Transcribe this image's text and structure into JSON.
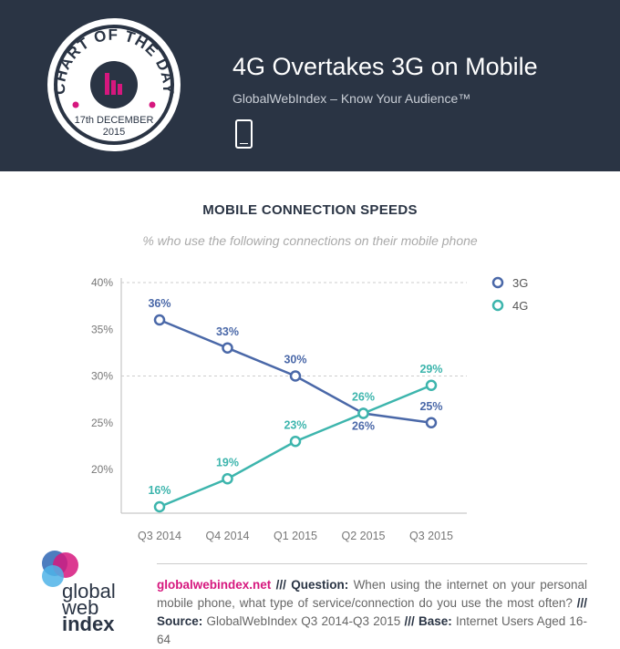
{
  "header": {
    "badge_title": "CHART OF THE DAY",
    "badge_date": "17th DECEMBER",
    "badge_year": "2015",
    "title": "4G Overtakes 3G on Mobile",
    "subtitle": "GlobalWebIndex – Know Your Audience™",
    "icon": "mobile-phone-icon",
    "bg": "#2a3444"
  },
  "chart_data": {
    "type": "line",
    "title": "MOBILE CONNECTION SPEEDS",
    "subtitle": "% who use the following connections on their mobile phone",
    "categories": [
      "Q3 2014",
      "Q4 2014",
      "Q1 2015",
      "Q2 2015",
      "Q3 2015"
    ],
    "ylim": [
      15,
      40
    ],
    "yticks": [
      "40%",
      "35%",
      "30%",
      "25%",
      "20%"
    ],
    "ytick_values": [
      40,
      35,
      30,
      25,
      20
    ],
    "grid": true,
    "legend": "top-right",
    "series": [
      {
        "name": "3G",
        "color": "#4a68a8",
        "values": [
          36,
          33,
          30,
          26,
          25
        ]
      },
      {
        "name": "4G",
        "color": "#3db5ad",
        "values": [
          16,
          19,
          23,
          26,
          29
        ]
      }
    ]
  },
  "footer": {
    "site": "globalwebindex.net",
    "sep": "///",
    "q_label": "Question:",
    "question": "When using the internet on your personal mobile phone, what type of service/connection do you use the most often?",
    "s_label": "Source:",
    "source": "GlobalWebIndex Q3 2014-Q3 2015",
    "b_label": "Base:",
    "base": "Internet Users Aged 16-64"
  },
  "logo": {
    "l1": "global",
    "l2": "web",
    "l3": "index"
  }
}
